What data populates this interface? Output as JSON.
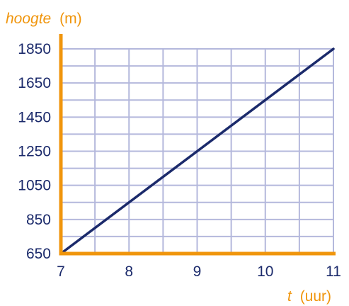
{
  "chart_data": {
    "type": "line",
    "ylabel": {
      "var": "hoogte",
      "unit": "(m)"
    },
    "xlabel": {
      "var": "t",
      "unit": "(uur)"
    },
    "xlim": [
      7,
      11
    ],
    "ylim": [
      650,
      1850
    ],
    "x_ticks": [
      "7",
      "8",
      "9",
      "10",
      "11"
    ],
    "y_ticks": [
      "650",
      "850",
      "1050",
      "1250",
      "1450",
      "1650",
      "1850"
    ],
    "grid": true,
    "grid_x_step": 0.5,
    "grid_y_step": 100,
    "series": [
      {
        "x": [
          7,
          11
        ],
        "y": [
          650,
          1850
        ]
      }
    ],
    "colors": {
      "axis": "#f0950c",
      "grid": "#b4b8dc",
      "line": "#1b2a6b",
      "text": "#1b2a6b"
    }
  }
}
